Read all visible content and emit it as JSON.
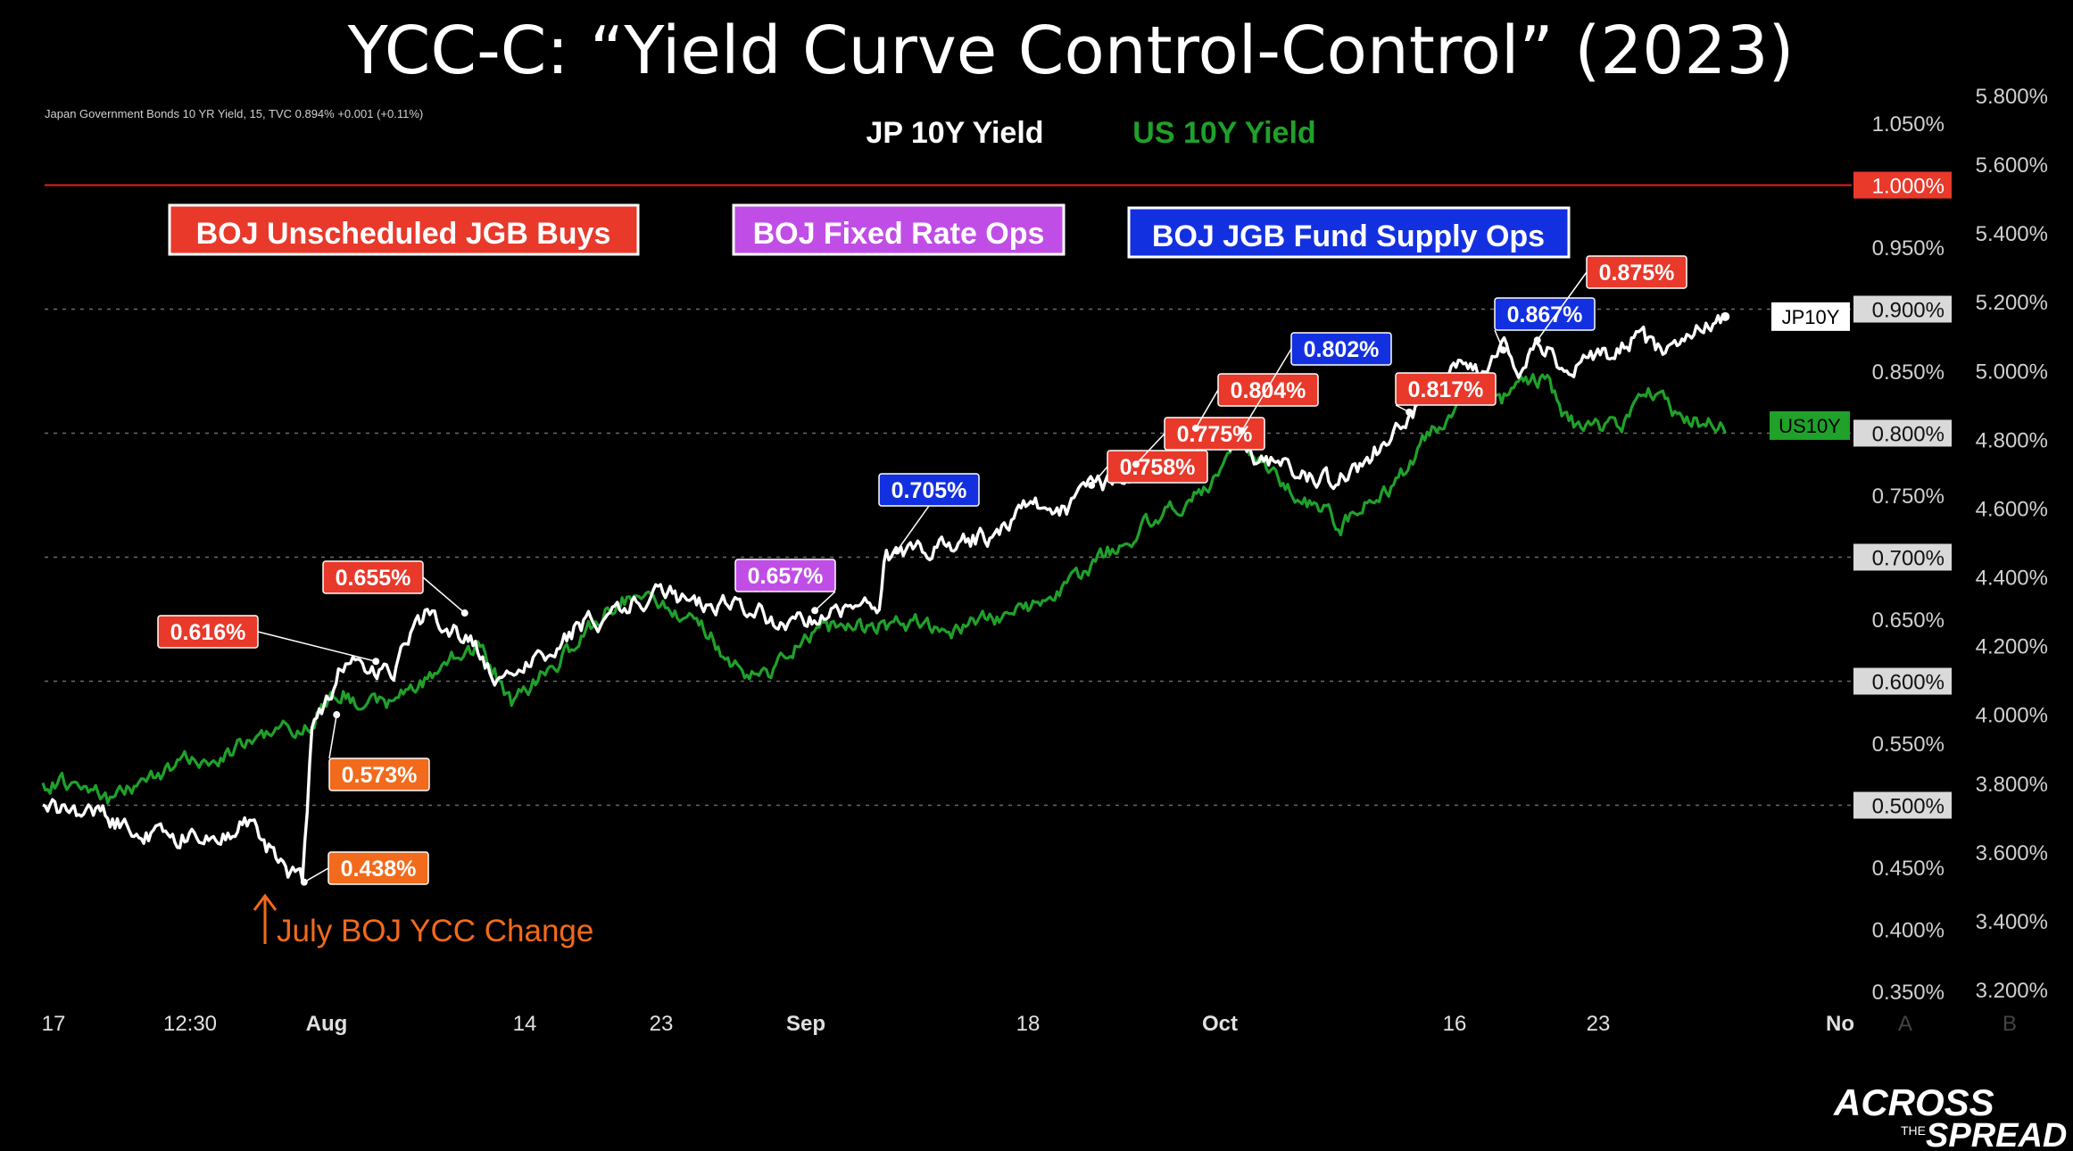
{
  "title": "YCC-C: “Yield Curve Control-Control” (2023)",
  "instrument_info": "Japan Government Bonds 10 YR Yield, 15, TVC  0.894%  +0.001 (+0.11%)",
  "brand": {
    "line1": "ACROSS",
    "line2": "THE",
    "line3": "SPREAD"
  },
  "colors": {
    "jp": "#ffffff",
    "us": "#1fa12a",
    "red_label": "#e8392b",
    "orange_label": "#f26a1b",
    "purple_label": "#c04ee6",
    "blue_label": "#1330e0",
    "ref_line": "#e0201a"
  },
  "chart_data": {
    "type": "line",
    "title": "YCC-C: “Yield Curve Control-Control” (2023)",
    "legend": [
      {
        "name": "JP 10Y Yield",
        "color": "#ffffff"
      },
      {
        "name": "US 10Y Yield",
        "color": "#1fa12a"
      }
    ],
    "left_axis_ticks": [
      "1.050%",
      "1.000%",
      "0.950%",
      "0.900%",
      "0.850%",
      "0.800%",
      "0.750%",
      "0.700%",
      "0.650%",
      "0.600%",
      "0.550%",
      "0.500%",
      "0.450%",
      "0.400%",
      "0.350%"
    ],
    "left_axis_highlight": [
      "1.000%",
      "0.900%",
      "0.800%",
      "0.700%",
      "0.600%",
      "0.500%"
    ],
    "right_axis_ticks": [
      "5.800%",
      "5.600%",
      "5.400%",
      "5.200%",
      "5.000%",
      "4.800%",
      "4.600%",
      "4.400%",
      "4.200%",
      "4.000%",
      "3.800%",
      "3.600%",
      "3.400%",
      "3.200%"
    ],
    "x_ticks": [
      {
        "label": "17",
        "bold": false
      },
      {
        "label": "12:30",
        "bold": false
      },
      {
        "label": "Aug",
        "bold": true
      },
      {
        "label": "14",
        "bold": false
      },
      {
        "label": "23",
        "bold": false
      },
      {
        "label": "Sep",
        "bold": true
      },
      {
        "label": "18",
        "bold": false
      },
      {
        "label": "Oct",
        "bold": true
      },
      {
        "label": "16",
        "bold": false
      },
      {
        "label": "23",
        "bold": false
      },
      {
        "label": "No",
        "bold": true
      },
      {
        "label": "A",
        "bold": false
      },
      {
        "label": "B",
        "bold": false
      }
    ],
    "category_boxes": [
      {
        "label": "BOJ Unscheduled JGB Buys",
        "color": "#e8392b"
      },
      {
        "label": "BOJ Fixed Rate Ops",
        "color": "#c04ee6"
      },
      {
        "label": "BOJ JGB Fund Supply Ops",
        "color": "#1330e0"
      }
    ],
    "series": [
      {
        "name": "JP10Y",
        "tag": "JP10Y",
        "last": 0.894,
        "anchors": [
          [
            0,
            0.497
          ],
          [
            0.03,
            0.495
          ],
          [
            0.06,
            0.476
          ],
          [
            0.09,
            0.474
          ],
          [
            0.12,
            0.485
          ],
          [
            0.145,
            0.444
          ],
          [
            0.152,
            0.44
          ],
          [
            0.158,
            0.57
          ],
          [
            0.165,
            0.58
          ],
          [
            0.175,
            0.615
          ],
          [
            0.19,
            0.609
          ],
          [
            0.205,
            0.61
          ],
          [
            0.225,
            0.655
          ],
          [
            0.24,
            0.642
          ],
          [
            0.25,
            0.635
          ],
          [
            0.265,
            0.603
          ],
          [
            0.27,
            0.595
          ],
          [
            0.282,
            0.615
          ],
          [
            0.295,
            0.625
          ],
          [
            0.315,
            0.645
          ],
          [
            0.335,
            0.652
          ],
          [
            0.35,
            0.665
          ],
          [
            0.362,
            0.675
          ],
          [
            0.375,
            0.665
          ],
          [
            0.39,
            0.658
          ],
          [
            0.405,
            0.663
          ],
          [
            0.422,
            0.655
          ],
          [
            0.437,
            0.642
          ],
          [
            0.452,
            0.652
          ],
          [
            0.468,
            0.658
          ],
          [
            0.483,
            0.663
          ],
          [
            0.49,
            0.66
          ],
          [
            0.493,
            0.698
          ],
          [
            0.5,
            0.705
          ],
          [
            0.52,
            0.708
          ],
          [
            0.54,
            0.713
          ],
          [
            0.555,
            0.717
          ],
          [
            0.566,
            0.73
          ],
          [
            0.576,
            0.745
          ],
          [
            0.588,
            0.735
          ],
          [
            0.6,
            0.738
          ],
          [
            0.614,
            0.758
          ],
          [
            0.627,
            0.76
          ],
          [
            0.64,
            0.775
          ],
          [
            0.652,
            0.775
          ],
          [
            0.664,
            0.795
          ],
          [
            0.675,
            0.804
          ],
          [
            0.685,
            0.8
          ],
          [
            0.695,
            0.793
          ],
          [
            0.702,
            0.802
          ],
          [
            0.712,
            0.775
          ],
          [
            0.725,
            0.78
          ],
          [
            0.74,
            0.765
          ],
          [
            0.755,
            0.76
          ],
          [
            0.768,
            0.77
          ],
          [
            0.78,
            0.785
          ],
          [
            0.79,
            0.797
          ],
          [
            0.8,
            0.817
          ],
          [
            0.81,
            0.825
          ],
          [
            0.82,
            0.84
          ],
          [
            0.832,
            0.855
          ],
          [
            0.843,
            0.845
          ],
          [
            0.855,
            0.867
          ],
          [
            0.865,
            0.852
          ],
          [
            0.875,
            0.875
          ],
          [
            0.885,
            0.862
          ],
          [
            0.895,
            0.846
          ],
          [
            0.905,
            0.858
          ],
          [
            0.915,
            0.861
          ],
          [
            0.925,
            0.872
          ],
          [
            0.935,
            0.88
          ],
          [
            0.945,
            0.866
          ],
          [
            0.955,
            0.874
          ],
          [
            0.965,
            0.886
          ],
          [
            0.975,
            0.89
          ],
          [
            0.985,
            0.894
          ]
        ]
      },
      {
        "name": "US10Y",
        "tag": "US10Y",
        "last": 4.84,
        "anchors": [
          [
            0,
            3.79
          ],
          [
            0.02,
            3.81
          ],
          [
            0.04,
            3.75
          ],
          [
            0.06,
            3.81
          ],
          [
            0.08,
            3.86
          ],
          [
            0.1,
            3.87
          ],
          [
            0.12,
            3.92
          ],
          [
            0.14,
            3.96
          ],
          [
            0.152,
            3.95
          ],
          [
            0.158,
            3.97
          ],
          [
            0.165,
            4.05
          ],
          [
            0.175,
            4.07
          ],
          [
            0.19,
            4.02
          ],
          [
            0.205,
            4.04
          ],
          [
            0.22,
            4.08
          ],
          [
            0.24,
            4.16
          ],
          [
            0.255,
            4.2
          ],
          [
            0.265,
            4.12
          ],
          [
            0.275,
            4.03
          ],
          [
            0.29,
            4.1
          ],
          [
            0.305,
            4.17
          ],
          [
            0.32,
            4.25
          ],
          [
            0.335,
            4.32
          ],
          [
            0.35,
            4.36
          ],
          [
            0.365,
            4.31
          ],
          [
            0.38,
            4.27
          ],
          [
            0.39,
            4.24
          ],
          [
            0.4,
            4.15
          ],
          [
            0.413,
            4.11
          ],
          [
            0.425,
            4.12
          ],
          [
            0.437,
            4.19
          ],
          [
            0.452,
            4.24
          ],
          [
            0.468,
            4.26
          ],
          [
            0.483,
            4.25
          ],
          [
            0.5,
            4.26
          ],
          [
            0.515,
            4.27
          ],
          [
            0.53,
            4.24
          ],
          [
            0.545,
            4.27
          ],
          [
            0.56,
            4.28
          ],
          [
            0.575,
            4.31
          ],
          [
            0.59,
            4.33
          ],
          [
            0.605,
            4.39
          ],
          [
            0.62,
            4.46
          ],
          [
            0.635,
            4.51
          ],
          [
            0.65,
            4.57
          ],
          [
            0.665,
            4.61
          ],
          [
            0.675,
            4.64
          ],
          [
            0.685,
            4.67
          ],
          [
            0.69,
            4.74
          ],
          [
            0.7,
            4.79
          ],
          [
            0.71,
            4.73
          ],
          [
            0.722,
            4.71
          ],
          [
            0.735,
            4.62
          ],
          [
            0.748,
            4.6
          ],
          [
            0.76,
            4.55
          ],
          [
            0.772,
            4.6
          ],
          [
            0.785,
            4.64
          ],
          [
            0.8,
            4.72
          ],
          [
            0.812,
            4.82
          ],
          [
            0.822,
            4.87
          ],
          [
            0.833,
            4.93
          ],
          [
            0.845,
            4.97
          ],
          [
            0.855,
            4.92
          ],
          [
            0.862,
            4.96
          ],
          [
            0.872,
            4.98
          ],
          [
            0.882,
            4.97
          ],
          [
            0.89,
            4.87
          ],
          [
            0.9,
            4.83
          ],
          [
            0.912,
            4.83
          ],
          [
            0.925,
            4.84
          ],
          [
            0.935,
            4.9
          ],
          [
            0.945,
            4.95
          ],
          [
            0.952,
            4.9
          ],
          [
            0.962,
            4.85
          ],
          [
            0.975,
            4.85
          ],
          [
            0.985,
            4.84
          ]
        ]
      }
    ],
    "reference_line": {
      "value": 1.0,
      "label": "1.000%"
    },
    "annotations": [
      {
        "label": "0.438%",
        "style": "orange",
        "x": 0.153,
        "value": 0.438
      },
      {
        "label": "0.573%",
        "style": "orange",
        "x": 0.172,
        "value": 0.573
      },
      {
        "label": "0.616%",
        "style": "red",
        "x": 0.195,
        "value": 0.616
      },
      {
        "label": "0.655%",
        "style": "red",
        "x": 0.247,
        "value": 0.655
      },
      {
        "label": "0.657%",
        "style": "purple",
        "x": 0.452,
        "value": 0.657
      },
      {
        "label": "0.705%",
        "style": "blue",
        "x": 0.5,
        "value": 0.705
      },
      {
        "label": "0.758%",
        "style": "red",
        "x": 0.614,
        "value": 0.758
      },
      {
        "label": "0.775%",
        "style": "red",
        "x": 0.64,
        "value": 0.775
      },
      {
        "label": "0.804%",
        "style": "red",
        "x": 0.675,
        "value": 0.804
      },
      {
        "label": "0.802%",
        "style": "blue",
        "x": 0.702,
        "value": 0.802
      },
      {
        "label": "0.817%",
        "style": "red",
        "x": 0.8,
        "value": 0.817
      },
      {
        "label": "0.867%",
        "style": "blue",
        "x": 0.855,
        "value": 0.867
      },
      {
        "label": "0.875%",
        "style": "red",
        "x": 0.875,
        "value": 0.875
      }
    ],
    "event_label": "July BOJ YCC Change",
    "left_axis_range": [
      0.35,
      1.05
    ],
    "right_axis_range": [
      3.2,
      5.8
    ],
    "grid": "dashed at highlighted left-axis levels"
  }
}
